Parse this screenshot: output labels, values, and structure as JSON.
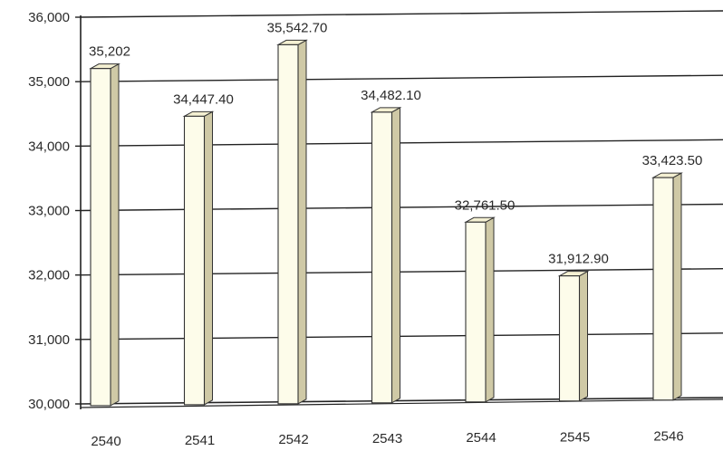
{
  "chart_data": {
    "type": "bar",
    "title": "",
    "xlabel": "",
    "ylabel": "",
    "categories": [
      "2540",
      "2541",
      "2542",
      "2543",
      "2544",
      "2545",
      "2546"
    ],
    "values": [
      35202,
      34447.4,
      35542.7,
      34482.1,
      32761.5,
      31912.9,
      33423.5
    ],
    "value_labels": [
      "35,202",
      "34,447.40",
      "35,542.70",
      "34,482.10",
      "32,761.50",
      "31,912.90",
      "33,423.50"
    ],
    "ylim": [
      30000,
      36000
    ],
    "yticks": [
      30000,
      31000,
      32000,
      33000,
      34000,
      35000,
      36000
    ],
    "ytick_labels": [
      "30,000",
      "31,000",
      "32,000",
      "33,000",
      "34,000",
      "35,000",
      "36,000"
    ],
    "grid": true,
    "legend": "none",
    "style": "3d-column",
    "colors": {
      "bar_front": "#fdfcea",
      "bar_side": "#cfc9a6",
      "bar_top": "#f4f0d2",
      "bar_stroke": "#333333",
      "grid": "#222222",
      "text": "#2a2a2a"
    }
  }
}
